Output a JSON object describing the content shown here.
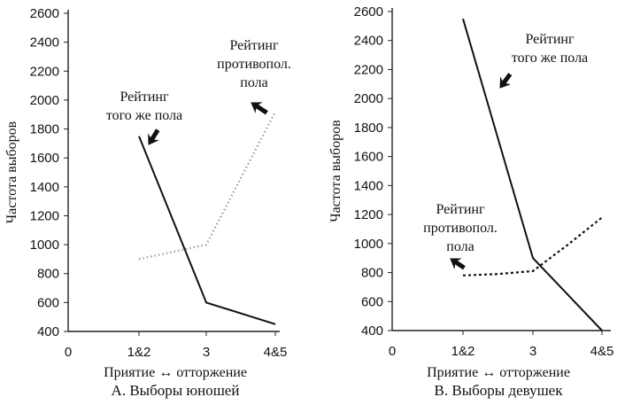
{
  "chart_data": [
    {
      "type": "line",
      "title": "А. Выборы юношей",
      "xlabel": "Приятие ↔ отторжение",
      "ylabel": "Частота выборов",
      "categories": [
        "0",
        "1&2",
        "3",
        "4&5"
      ],
      "yticks": [
        "400",
        "600",
        "800",
        "1000",
        "1200",
        "1400",
        "1600",
        "1800",
        "2000",
        "2200",
        "2400",
        "2600"
      ],
      "ylim": [
        400,
        2600
      ],
      "grid": false,
      "series": [
        {
          "name": "Рейтинг того же пола",
          "style": "solid",
          "color": "#111111",
          "points": [
            [
              1,
              1750
            ],
            [
              2,
              600
            ],
            [
              3,
              450
            ]
          ],
          "annotation": [
            "Рейтинг",
            "того же пола"
          ]
        },
        {
          "name": "Рейтинг противопол. пола",
          "style": "dotted",
          "color": "#9a9a9a",
          "points": [
            [
              1,
              900
            ],
            [
              2,
              1000
            ],
            [
              3,
              1920
            ]
          ],
          "annotation": [
            "Рейтинг",
            "противопол.",
            "пола"
          ]
        }
      ]
    },
    {
      "type": "line",
      "title": "В. Выборы девушек",
      "xlabel": "Приятие ↔ отторжение",
      "ylabel": "Частота выборов",
      "categories": [
        "0",
        "1&2",
        "3",
        "4&5"
      ],
      "yticks": [
        "400",
        "600",
        "800",
        "1000",
        "1200",
        "1400",
        "1600",
        "1800",
        "2000",
        "2200",
        "2400",
        "2600"
      ],
      "ylim": [
        400,
        2600
      ],
      "grid": false,
      "series": [
        {
          "name": "Рейтинг того же пола",
          "style": "solid",
          "color": "#111111",
          "points": [
            [
              1,
              2550
            ],
            [
              2,
              900
            ],
            [
              3,
              400
            ]
          ],
          "annotation": [
            "Рейтинг",
            "того же пола"
          ]
        },
        {
          "name": "Рейтинг противопол. пола",
          "style": "dashed",
          "color": "#111111",
          "points": [
            [
              1,
              780
            ],
            [
              1.5,
              790
            ],
            [
              2,
              810
            ],
            [
              2.5,
              990
            ],
            [
              3,
              1180
            ]
          ],
          "annotation": [
            "Рейтинг",
            "противопол.",
            "пола"
          ]
        }
      ]
    }
  ]
}
